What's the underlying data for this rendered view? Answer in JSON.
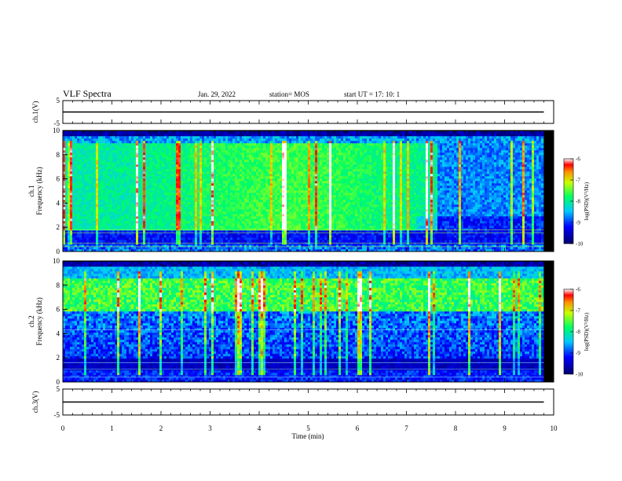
{
  "header": {
    "title": "VLF Spectra",
    "date": "Jan. 29, 2022",
    "station": "station= MOS",
    "start_ut": "start  UT  =   17: 10: 1"
  },
  "chart_data": [
    {
      "type": "line",
      "panel": "ch1-voltage",
      "ylabel": "ch.1(V)",
      "ylim": [
        -5,
        5
      ],
      "yticks": [
        5,
        -5
      ],
      "x": [
        0,
        9.8
      ],
      "values": [
        0,
        0
      ]
    },
    {
      "type": "heatmap",
      "panel": "ch1-spectrogram",
      "ylabel": "ch.1\nFrequency (kHz)",
      "ylim": [
        0,
        10
      ],
      "yticks": [
        0,
        2,
        4,
        6,
        8,
        10
      ],
      "xlim": [
        0,
        10
      ],
      "data_end_min": 9.8,
      "strong_band_khz": [
        2,
        9
      ],
      "colorbar": {
        "label": "log(PSD)(V²/Hz)",
        "range": [
          -10,
          -6
        ],
        "ticks": [
          "-6",
          "-7",
          "-8",
          "-9",
          "-10"
        ]
      }
    },
    {
      "type": "heatmap",
      "panel": "ch2-spectrogram",
      "ylabel": "ch.2\nFrequency (kHz)",
      "ylim": [
        0,
        10
      ],
      "yticks": [
        0,
        2,
        4,
        6,
        8,
        10
      ],
      "xlim": [
        0,
        10
      ],
      "data_end_min": 9.8,
      "strong_band_khz": [
        6,
        8.5
      ],
      "colorbar": {
        "label": "log(PSD)(V²/Hz)",
        "range": [
          -10,
          -6
        ],
        "ticks": [
          "-6",
          "-7",
          "-8",
          "-9",
          "-10"
        ]
      }
    },
    {
      "type": "line",
      "panel": "ch3-voltage",
      "ylabel": "ch.3(V)",
      "ylim": [
        -5,
        5
      ],
      "yticks": [
        5,
        -5
      ],
      "x": [
        0,
        9.8
      ],
      "values": [
        0,
        0
      ]
    }
  ],
  "xaxis": {
    "label": "Time  (min)",
    "range": [
      0,
      10
    ],
    "ticks": [
      "0",
      "1",
      "2",
      "3",
      "4",
      "5",
      "6",
      "7",
      "8",
      "9",
      "10"
    ]
  }
}
